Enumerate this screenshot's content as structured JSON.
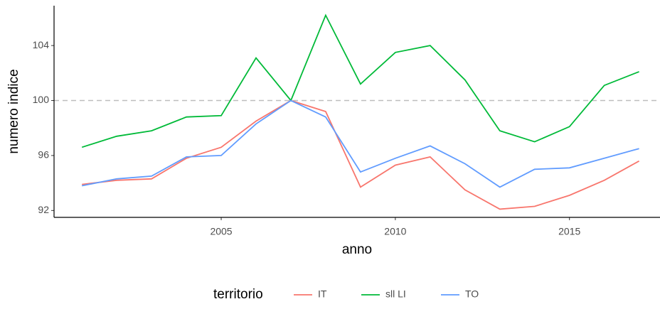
{
  "chart_data": {
    "type": "line",
    "x_label": "anno",
    "y_label": "numero indice",
    "x": [
      2001,
      2002,
      2003,
      2004,
      2005,
      2006,
      2007,
      2008,
      2009,
      2010,
      2011,
      2012,
      2013,
      2014,
      2015,
      2016,
      2017
    ],
    "series": [
      {
        "name": "IT",
        "color": "#F8766D",
        "values": [
          93.9,
          94.2,
          94.3,
          95.8,
          96.6,
          98.5,
          100,
          99.2,
          93.7,
          95.3,
          95.9,
          93.5,
          92.1,
          92.3,
          93.1,
          94.2,
          95.6
        ]
      },
      {
        "name": "sll LI",
        "color": "#00BA38",
        "values": [
          96.6,
          97.4,
          97.8,
          98.8,
          98.9,
          103.1,
          100,
          106.2,
          101.2,
          103.5,
          104,
          101.5,
          97.8,
          97.0,
          98.1,
          101.1,
          102.1
        ]
      },
      {
        "name": "TO",
        "color": "#619CFF",
        "values": [
          93.8,
          94.3,
          94.5,
          95.9,
          96.0,
          98.3,
          100,
          98.8,
          94.8,
          95.8,
          96.7,
          95.4,
          93.7,
          95.0,
          95.1,
          95.8,
          96.5
        ]
      }
    ],
    "xlim": [
      2000.2,
      2017.6
    ],
    "xticks": [
      2005,
      2010,
      2015
    ],
    "ylim": [
      91.5,
      106.9
    ],
    "yticks": [
      92,
      96,
      100,
      104
    ],
    "reference_line": 100,
    "legend_title": "territorio",
    "legend_position": "bottom"
  }
}
